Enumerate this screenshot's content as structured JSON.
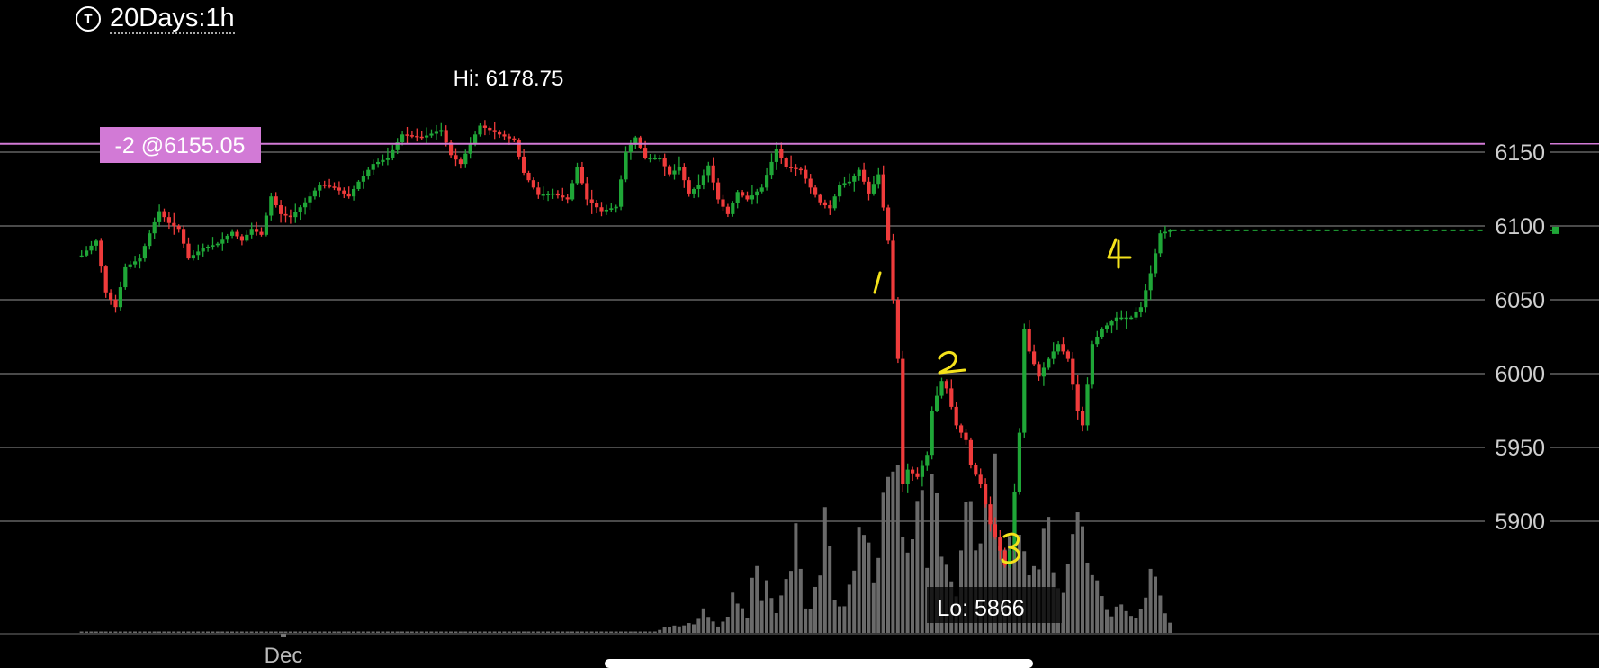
{
  "header": {
    "icon": "T",
    "period": "20Days:1h"
  },
  "colors": {
    "bg": "#000000",
    "up": "#1fa637",
    "down": "#ef3b3b",
    "grid": "#4a4a4a",
    "axis_text": "#cfcfcf",
    "position": "#d27ad6",
    "volume": "#6a6a6a",
    "annotation": "#f4e21b",
    "target": "#1fa637"
  },
  "chart_data": {
    "type": "candlestick",
    "timeframe": "1h",
    "x_label": "Dec",
    "ylim": [
      5850,
      6200
    ],
    "y_ticks": [
      6150,
      6100,
      6050,
      6000,
      5950,
      5900
    ],
    "hi_label": "Hi: 6178.75",
    "lo_label": "Lo: 5866",
    "position": {
      "label": "-2 @6155.05",
      "price": 6155.05
    },
    "target_price": 6097,
    "annotations": [
      "1",
      "2",
      "3",
      "4"
    ],
    "path": [
      [
        0,
        6080
      ],
      [
        3,
        6090
      ],
      [
        5,
        6055
      ],
      [
        7,
        6045
      ],
      [
        9,
        6072
      ],
      [
        12,
        6078
      ],
      [
        14,
        6095
      ],
      [
        16,
        6110
      ],
      [
        18,
        6102
      ],
      [
        20,
        6098
      ],
      [
        22,
        6078
      ],
      [
        25,
        6085
      ],
      [
        28,
        6088
      ],
      [
        31,
        6096
      ],
      [
        33,
        6090
      ],
      [
        35,
        6098
      ],
      [
        37,
        6094
      ],
      [
        39,
        6120
      ],
      [
        41,
        6108
      ],
      [
        43,
        6106
      ],
      [
        46,
        6116
      ],
      [
        49,
        6128
      ],
      [
        52,
        6126
      ],
      [
        55,
        6120
      ],
      [
        57,
        6130
      ],
      [
        60,
        6142
      ],
      [
        63,
        6146
      ],
      [
        66,
        6162
      ],
      [
        70,
        6160
      ],
      [
        74,
        6165
      ],
      [
        76,
        6148
      ],
      [
        78,
        6142
      ],
      [
        80,
        6156
      ],
      [
        82,
        6168
      ],
      [
        86,
        6162
      ],
      [
        89,
        6158
      ],
      [
        91,
        6136
      ],
      [
        94,
        6121
      ],
      [
        97,
        6122
      ],
      [
        100,
        6118
      ],
      [
        102,
        6140
      ],
      [
        104,
        6118
      ],
      [
        107,
        6110
      ],
      [
        110,
        6113
      ],
      [
        112,
        6150
      ],
      [
        114,
        6160
      ],
      [
        116,
        6146
      ],
      [
        119,
        6146
      ],
      [
        121,
        6135
      ],
      [
        123,
        6140
      ],
      [
        125,
        6122
      ],
      [
        127,
        6128
      ],
      [
        129,
        6141
      ],
      [
        131,
        6118
      ],
      [
        133,
        6108
      ],
      [
        135,
        6123
      ],
      [
        137,
        6118
      ],
      [
        140,
        6126
      ],
      [
        143,
        6152
      ],
      [
        145,
        6140
      ],
      [
        148,
        6138
      ],
      [
        150,
        6126
      ],
      [
        152,
        6116
      ],
      [
        154,
        6112
      ],
      [
        156,
        6128
      ],
      [
        158,
        6130
      ],
      [
        160,
        6138
      ],
      [
        162,
        6122
      ],
      [
        164,
        6135
      ],
      [
        166,
        6090
      ],
      [
        168,
        6010
      ],
      [
        169,
        5925
      ],
      [
        170,
        5935
      ],
      [
        172,
        5930
      ],
      [
        174,
        5945
      ],
      [
        175,
        5975
      ],
      [
        177,
        5995
      ],
      [
        178,
        5990
      ],
      [
        180,
        5965
      ],
      [
        182,
        5955
      ],
      [
        183,
        5938
      ],
      [
        185,
        5925
      ],
      [
        187,
        5898
      ],
      [
        189,
        5880
      ],
      [
        190,
        5870
      ],
      [
        191,
        5880
      ],
      [
        193,
        5960
      ],
      [
        194,
        6030
      ],
      [
        195,
        6015
      ],
      [
        197,
        5998
      ],
      [
        199,
        6010
      ],
      [
        201,
        6020
      ],
      [
        203,
        6010
      ],
      [
        205,
        5975
      ],
      [
        206,
        5965
      ],
      [
        208,
        6020
      ],
      [
        210,
        6030
      ],
      [
        213,
        6038
      ],
      [
        216,
        6038
      ],
      [
        218,
        6045
      ],
      [
        220,
        6068
      ],
      [
        222,
        6095
      ],
      [
        224,
        6097
      ]
    ],
    "volume_profile": [
      [
        0,
        0
      ],
      [
        118,
        0
      ],
      [
        120,
        0.03
      ],
      [
        126,
        0.05
      ],
      [
        128,
        0.12
      ],
      [
        129,
        0.08
      ],
      [
        131,
        0.04
      ],
      [
        133,
        0.1
      ],
      [
        134,
        0.22
      ],
      [
        135,
        0.18
      ],
      [
        137,
        0.08
      ],
      [
        138,
        0.3
      ],
      [
        139,
        0.36
      ],
      [
        140,
        0.2
      ],
      [
        141,
        0.26
      ],
      [
        143,
        0.1
      ],
      [
        145,
        0.28
      ],
      [
        147,
        0.52
      ],
      [
        148,
        0.4
      ],
      [
        149,
        0.12
      ],
      [
        150,
        0.15
      ],
      [
        152,
        0.3
      ],
      [
        153,
        0.6
      ],
      [
        154,
        0.5
      ],
      [
        155,
        0.2
      ],
      [
        157,
        0.15
      ],
      [
        158,
        0.3
      ],
      [
        159,
        0.4
      ],
      [
        160,
        0.55
      ],
      [
        161,
        0.6
      ],
      [
        162,
        0.45
      ],
      [
        163,
        0.25
      ],
      [
        164,
        0.35
      ],
      [
        165,
        0.7
      ],
      [
        166,
        0.9
      ],
      [
        167,
        1.0
      ],
      [
        168,
        0.85
      ],
      [
        169,
        0.6
      ],
      [
        170,
        0.45
      ],
      [
        172,
        0.65
      ],
      [
        173,
        0.8
      ],
      [
        174,
        0.4
      ],
      [
        175,
        0.75
      ],
      [
        176,
        0.68
      ],
      [
        177,
        0.5
      ],
      [
        178,
        0.4
      ],
      [
        180,
        0.2
      ],
      [
        182,
        0.7
      ],
      [
        183,
        0.78
      ],
      [
        184,
        0.5
      ],
      [
        186,
        0.6
      ],
      [
        188,
        0.86
      ],
      [
        189,
        0.5
      ],
      [
        190,
        0.4
      ],
      [
        192,
        0.72
      ],
      [
        194,
        0.5
      ],
      [
        195,
        0.3
      ],
      [
        197,
        0.4
      ],
      [
        198,
        0.5
      ],
      [
        199,
        0.55
      ],
      [
        200,
        0.3
      ],
      [
        202,
        0.2
      ],
      [
        205,
        0.6
      ],
      [
        206,
        0.7
      ],
      [
        207,
        0.45
      ],
      [
        208,
        0.3
      ],
      [
        210,
        0.2
      ],
      [
        212,
        0.1
      ],
      [
        214,
        0.15
      ],
      [
        216,
        0.08
      ],
      [
        218,
        0.12
      ],
      [
        220,
        0.3
      ],
      [
        221,
        0.34
      ],
      [
        222,
        0.2
      ],
      [
        224,
        0.05
      ]
    ]
  }
}
